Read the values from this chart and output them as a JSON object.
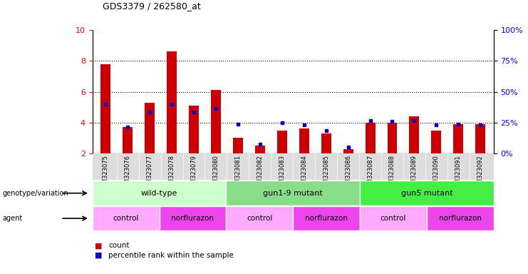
{
  "title": "GDS3379 / 262580_at",
  "samples": [
    "GSM323075",
    "GSM323076",
    "GSM323077",
    "GSM323078",
    "GSM323079",
    "GSM323080",
    "GSM323081",
    "GSM323082",
    "GSM323083",
    "GSM323084",
    "GSM323085",
    "GSM323086",
    "GSM323087",
    "GSM323088",
    "GSM323089",
    "GSM323090",
    "GSM323091",
    "GSM323092"
  ],
  "red_values": [
    7.8,
    3.7,
    5.3,
    8.6,
    5.1,
    6.1,
    3.0,
    2.5,
    3.5,
    3.6,
    3.3,
    2.3,
    4.0,
    4.0,
    4.4,
    3.5,
    3.9,
    3.9
  ],
  "blue_values": [
    5.2,
    3.7,
    4.7,
    5.2,
    4.7,
    4.9,
    3.9,
    2.6,
    4.0,
    3.85,
    3.5,
    2.4,
    4.15,
    4.1,
    4.15,
    3.85,
    3.9,
    3.85
  ],
  "y_min": 2,
  "y_max": 10,
  "y_ticks_left": [
    2,
    4,
    6,
    8,
    10
  ],
  "y_ticks_right": [
    0,
    25,
    50,
    75,
    100
  ],
  "bar_color_red": "#cc0000",
  "bar_color_blue": "#0000cc",
  "genotype_groups": [
    {
      "label": "wild-type",
      "start": 0,
      "end": 6,
      "color": "#ccffcc"
    },
    {
      "label": "gun1-9 mutant",
      "start": 6,
      "end": 12,
      "color": "#88dd88"
    },
    {
      "label": "gun5 mutant",
      "start": 12,
      "end": 18,
      "color": "#44ee44"
    }
  ],
  "agent_groups": [
    {
      "label": "control",
      "start": 0,
      "end": 3,
      "color": "#ffaaff"
    },
    {
      "label": "norflurazon",
      "start": 3,
      "end": 6,
      "color": "#ee44ee"
    },
    {
      "label": "control",
      "start": 6,
      "end": 9,
      "color": "#ffaaff"
    },
    {
      "label": "norflurazon",
      "start": 9,
      "end": 12,
      "color": "#ee44ee"
    },
    {
      "label": "control",
      "start": 12,
      "end": 15,
      "color": "#ffaaff"
    },
    {
      "label": "norflurazon",
      "start": 15,
      "end": 18,
      "color": "#ee44ee"
    }
  ],
  "legend_count_color": "#cc0000",
  "legend_percentile_color": "#0000cc",
  "tick_label_bg": "#dddddd"
}
